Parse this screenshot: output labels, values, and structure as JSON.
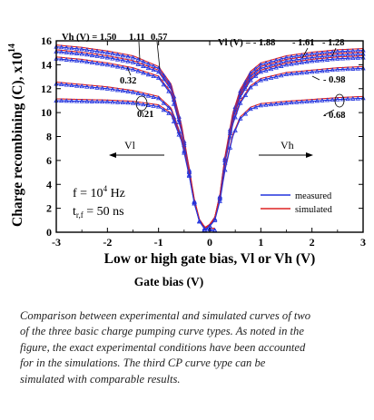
{
  "chart_data": {
    "type": "line",
    "ylabel": "Charge recombining (C), x10",
    "ylabel_exp": "14",
    "xlabel": "Low or high gate bias, Vl or Vh (V)",
    "xlabel2": "Gate bias (V)",
    "xlim": [
      -3,
      3
    ],
    "ylim": [
      0,
      16
    ],
    "xticks": [
      "-3",
      "-2",
      "-1",
      "0",
      "1",
      "2",
      "3"
    ],
    "yticks": [
      "0",
      "2",
      "4",
      "6",
      "8",
      "10",
      "12",
      "14",
      "16"
    ],
    "legend": {
      "placement": "bottom-right",
      "entries": [
        {
          "name": "measured",
          "color": "#2233dd"
        },
        {
          "name": "simulated",
          "color": "#dd2222"
        }
      ]
    },
    "annotations": {
      "vh_header": "Vh (V) = 1.50",
      "vh_v2": "1.11",
      "vh_v3": "0.57",
      "vh_v4": "0.32",
      "vh_v5": "0.21",
      "vl_header": "Vl (V) = - 1.88",
      "vl_v2": "- 1.61",
      "vl_v3": "- 1.28",
      "vl_v4": "- 0.98",
      "vl_v5": "- 0.68",
      "vl_arrow": "Vl",
      "vh_arrow": "Vh",
      "freq_prefix": "f = 10",
      "freq_exp": "4",
      "freq_unit": " Hz",
      "trise_prefix": "t",
      "trise_sub": "r,f",
      "trise_suffix": " = 50 ns"
    },
    "series_left": [
      {
        "label": "1.50",
        "plateau": 15.5,
        "x": [
          -3,
          -2.5,
          -2,
          -1.5,
          -1,
          -0.75,
          -0.55,
          -0.4,
          -0.3,
          -0.2,
          -0.1,
          0.1
        ],
        "y": [
          15.5,
          15.3,
          15.0,
          14.6,
          13.7,
          12.2,
          8.8,
          5.2,
          2.6,
          0.9,
          0.3,
          0.15
        ]
      },
      {
        "label": "1.11",
        "plateau": 15.1,
        "x": [
          -3,
          -2.5,
          -2,
          -1.5,
          -1,
          -0.75,
          -0.55,
          -0.4,
          -0.3,
          -0.2,
          -0.1,
          0.1
        ],
        "y": [
          15.1,
          14.9,
          14.6,
          14.2,
          13.4,
          11.9,
          8.6,
          5.1,
          2.5,
          0.9,
          0.3,
          0.15
        ]
      },
      {
        "label": "0.57",
        "plateau": 14.5,
        "x": [
          -3,
          -2.5,
          -2,
          -1.5,
          -1,
          -0.75,
          -0.55,
          -0.4,
          -0.3,
          -0.2,
          -0.1,
          0.1
        ],
        "y": [
          14.5,
          14.3,
          14.0,
          13.6,
          12.9,
          11.5,
          8.4,
          5.0,
          2.5,
          0.9,
          0.3,
          0.15
        ]
      },
      {
        "label": "0.32",
        "plateau": 12.4,
        "x": [
          -3,
          -2.5,
          -2,
          -1.5,
          -1,
          -0.75,
          -0.55,
          -0.4,
          -0.3,
          -0.2,
          -0.1,
          0.1
        ],
        "y": [
          12.4,
          12.2,
          12.0,
          11.7,
          11.2,
          10.2,
          7.8,
          4.8,
          2.4,
          0.9,
          0.3,
          0.15
        ]
      },
      {
        "label": "0.21",
        "plateau": 11.0,
        "x": [
          -3,
          -2.5,
          -2,
          -1.5,
          -1,
          -0.75,
          -0.55,
          -0.4,
          -0.3,
          -0.2,
          -0.1,
          0.1
        ],
        "y": [
          11.0,
          10.95,
          10.9,
          10.8,
          10.5,
          9.8,
          7.6,
          4.7,
          2.4,
          0.9,
          0.3,
          0.15
        ]
      }
    ],
    "series_right": [
      {
        "label": "-1.88",
        "plateau": 15.2,
        "x": [
          -0.1,
          0,
          0.1,
          0.2,
          0.3,
          0.45,
          0.6,
          0.8,
          1.0,
          1.5,
          2.0,
          2.5,
          3.0
        ],
        "y": [
          0.2,
          0.5,
          1.1,
          3.0,
          6.2,
          9.8,
          11.8,
          13.3,
          14.0,
          14.6,
          14.9,
          15.1,
          15.2
        ]
      },
      {
        "label": "-1.61",
        "plateau": 14.9,
        "x": [
          -0.1,
          0,
          0.1,
          0.2,
          0.3,
          0.45,
          0.6,
          0.8,
          1.0,
          1.5,
          2.0,
          2.5,
          3.0
        ],
        "y": [
          0.2,
          0.5,
          1.1,
          3.0,
          6.1,
          9.6,
          11.6,
          13.0,
          13.7,
          14.3,
          14.6,
          14.8,
          14.9
        ]
      },
      {
        "label": "-1.28",
        "plateau": 14.6,
        "x": [
          -0.1,
          0,
          0.1,
          0.2,
          0.3,
          0.45,
          0.6,
          0.8,
          1.0,
          1.5,
          2.0,
          2.5,
          3.0
        ],
        "y": [
          0.2,
          0.5,
          1.1,
          2.9,
          6.0,
          9.4,
          11.3,
          12.7,
          13.4,
          14.0,
          14.3,
          14.5,
          14.6
        ]
      },
      {
        "label": "-0.98",
        "plateau": 13.7,
        "x": [
          -0.1,
          0,
          0.1,
          0.2,
          0.3,
          0.45,
          0.6,
          0.8,
          1.0,
          1.5,
          2.0,
          2.5,
          3.0
        ],
        "y": [
          0.2,
          0.5,
          1.1,
          2.8,
          5.8,
          9.0,
          10.8,
          12.1,
          12.7,
          13.2,
          13.4,
          13.6,
          13.7
        ]
      },
      {
        "label": "-0.68",
        "plateau": 11.2,
        "x": [
          -0.1,
          0,
          0.1,
          0.2,
          0.3,
          0.45,
          0.6,
          0.8,
          1.0,
          1.5,
          2.0,
          2.5,
          3.0
        ],
        "y": [
          0.2,
          0.5,
          1.0,
          2.6,
          5.2,
          8.0,
          9.5,
          10.3,
          10.6,
          10.8,
          10.95,
          11.1,
          11.2
        ]
      }
    ]
  },
  "caption": "Comparison between experimental and simulated curves of two of the three basic charge pumping curve types. As noted in the figure, the exact experimental conditions have been accounted for in the simulations. The third CP curve type can be simulated with comparable results."
}
